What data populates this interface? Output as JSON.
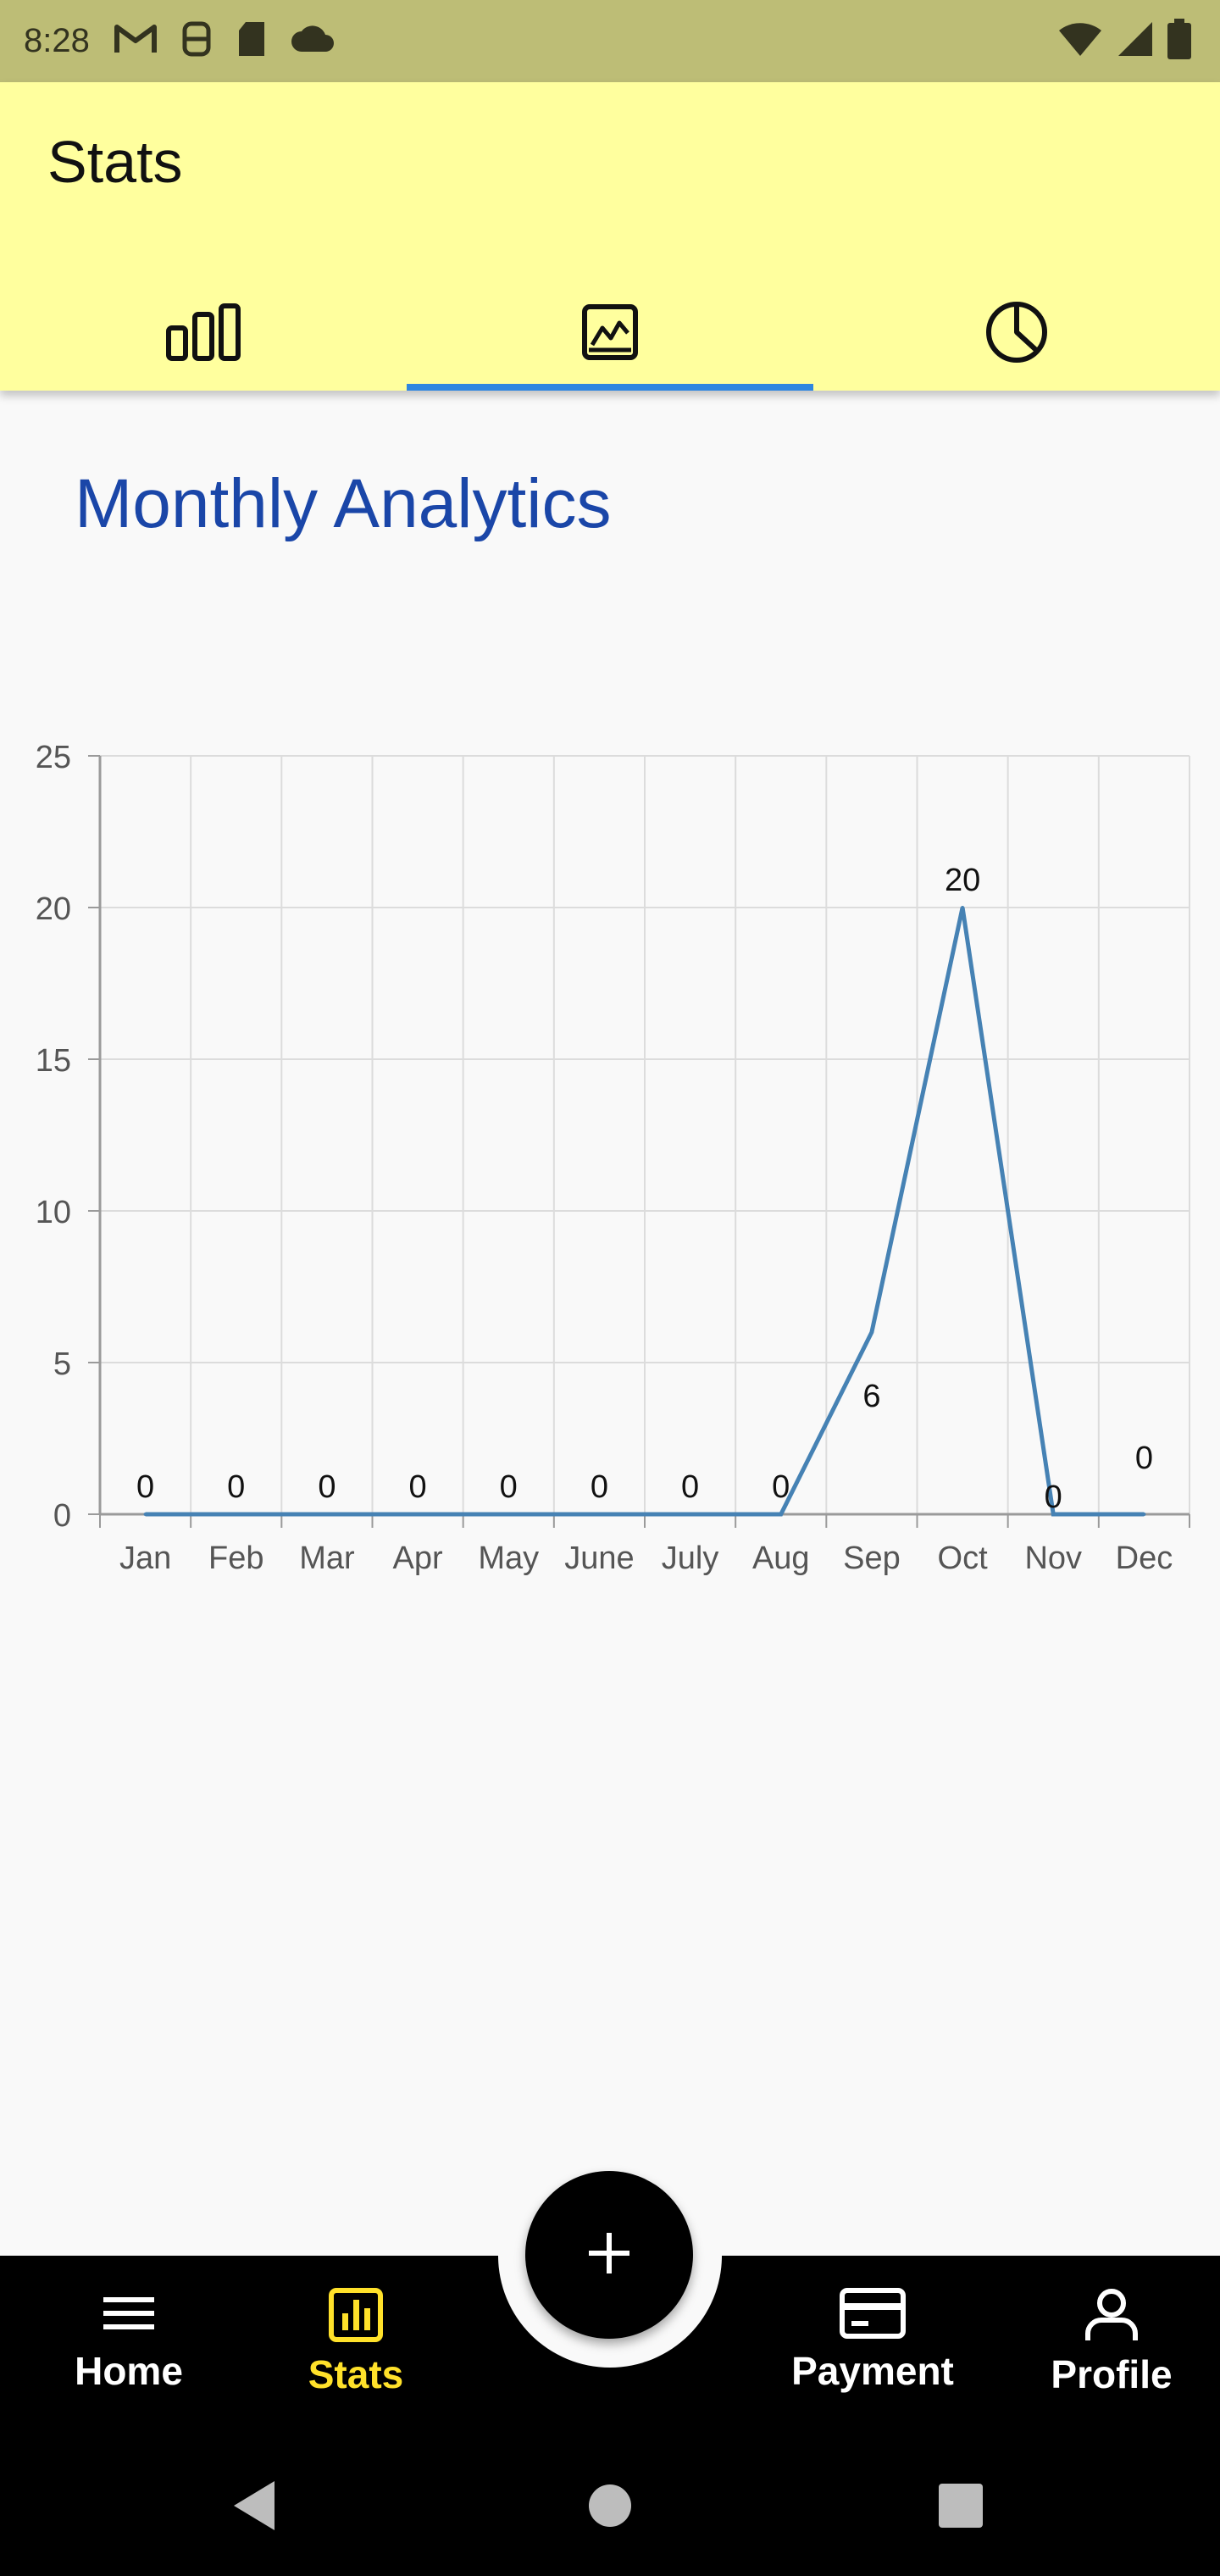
{
  "status_bar": {
    "time": "8:28",
    "icons_left": [
      "gmail-icon",
      "accessibility-icon",
      "sd-card-icon",
      "cloud-icon"
    ],
    "icons_right": [
      "wifi-icon",
      "signal-icon",
      "battery-icon"
    ],
    "color": "#bdbd76"
  },
  "app_bar": {
    "title": "Stats",
    "background": "#ffff9e",
    "tabs": [
      {
        "icon": "bar-chart-icon",
        "selected": false
      },
      {
        "icon": "line-chart-icon",
        "selected": true
      },
      {
        "icon": "pie-chart-icon",
        "selected": false
      }
    ],
    "indicator_color": "#2f86e0"
  },
  "main": {
    "title": "Monthly Analytics",
    "title_color": "#1a46a8"
  },
  "chart_data": {
    "type": "line",
    "x": [
      "Jan",
      "Feb",
      "Mar",
      "Apr",
      "May",
      "June",
      "July",
      "Aug",
      "Sep",
      "Oct",
      "Nov",
      "Dec"
    ],
    "series": [
      {
        "values": [
          0,
          0,
          0,
          0,
          0,
          0,
          0,
          0,
          6,
          20,
          0,
          0
        ],
        "color": "#4682b4"
      }
    ],
    "data_labels": [
      "0",
      "0",
      "0",
      "0",
      "0",
      "0",
      "0",
      "0",
      "6",
      "20",
      "0",
      "0"
    ],
    "yticks": [
      "0",
      "5",
      "10",
      "15",
      "20",
      "25"
    ],
    "ylim": [
      0,
      25
    ],
    "grid": true,
    "title": "",
    "xlabel": "",
    "ylabel": ""
  },
  "bottom_nav": {
    "items": [
      {
        "label": "Home",
        "icon": "menu-icon",
        "active": false
      },
      {
        "label": "Stats",
        "icon": "stats-icon",
        "active": true
      },
      {
        "label": "Payment",
        "icon": "card-icon",
        "active": false
      },
      {
        "label": "Profile",
        "icon": "person-icon",
        "active": false
      }
    ],
    "fab_icon": "plus-icon",
    "active_color": "#ffe12a"
  },
  "system_nav": {
    "buttons": [
      "back-icon",
      "home-icon",
      "recents-icon"
    ]
  }
}
